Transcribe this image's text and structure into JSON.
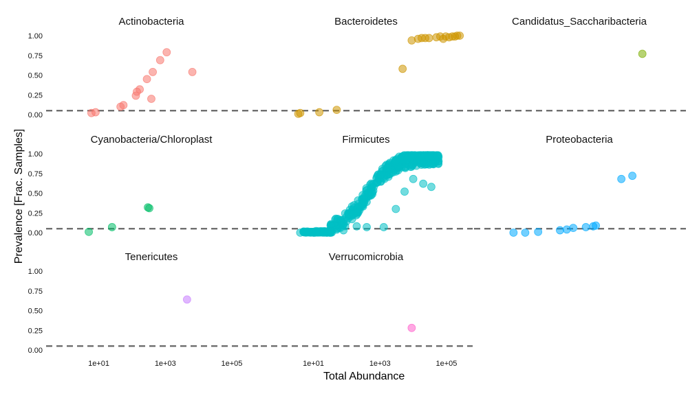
{
  "chart_data": {
    "type": "scatter",
    "layout": "faceted 3x3, log10 x-axis",
    "xlabel": "Total Abundance",
    "ylabel": "Prevalence [Frac. Samples]",
    "x_scale": "log10",
    "xlim": [
      0.3,
      300000
    ],
    "ylim": [
      0,
      1
    ],
    "x_ticks": [
      10,
      1000,
      100000
    ],
    "x_tick_labels": [
      "1e+01",
      "1e+03",
      "1e+05"
    ],
    "y_ticks": [
      0,
      0.25,
      0.5,
      0.75,
      1
    ],
    "y_tick_labels": [
      "0.00",
      "0.25",
      "0.50",
      "0.75",
      "1.00"
    ],
    "reference_line": {
      "y": 0.05,
      "style": "dashed",
      "color": "#666666"
    },
    "grid": false,
    "legend": "none",
    "panels": [
      {
        "name": "Actinobacteria",
        "color": "#F8766D",
        "points": [
          [
            6,
            0.02
          ],
          [
            8,
            0.03
          ],
          [
            45,
            0.1
          ],
          [
            55,
            0.12
          ],
          [
            130,
            0.24
          ],
          [
            140,
            0.29
          ],
          [
            170,
            0.32
          ],
          [
            280,
            0.45
          ],
          [
            380,
            0.2
          ],
          [
            420,
            0.54
          ],
          [
            700,
            0.69
          ],
          [
            1100,
            0.79
          ],
          [
            6500,
            0.54
          ]
        ]
      },
      {
        "name": "Bacteroidetes",
        "color": "#CD9600",
        "points": [
          [
            3.5,
            0.01
          ],
          [
            4,
            0.02
          ],
          [
            15,
            0.03
          ],
          [
            50,
            0.06
          ],
          [
            4800,
            0.58
          ],
          [
            9000,
            0.94
          ],
          [
            14000,
            0.96
          ],
          [
            18000,
            0.97
          ],
          [
            23000,
            0.97
          ],
          [
            30000,
            0.97
          ],
          [
            50000,
            0.98
          ],
          [
            65000,
            0.99
          ],
          [
            80000,
            0.96
          ],
          [
            95000,
            0.99
          ],
          [
            120000,
            0.98
          ],
          [
            150000,
            0.99
          ],
          [
            180000,
            0.99
          ],
          [
            210000,
            1.0
          ],
          [
            250000,
            1.0
          ]
        ]
      },
      {
        "name": "Candidatus_Saccharibacteria",
        "color": "#7CAE00",
        "points": [
          [
            30000,
            0.77
          ]
        ]
      },
      {
        "name": "Cyanobacteria/Chloroplast",
        "color": "#00BE67",
        "points": [
          [
            5,
            0.01
          ],
          [
            25,
            0.07
          ],
          [
            300,
            0.32
          ],
          [
            330,
            0.31
          ]
        ]
      },
      {
        "name": "Firmicutes",
        "color": "#00BFC4",
        "points": "dense"
      },
      {
        "name": "Proteobacteria",
        "color": "#00A9FF",
        "points": [
          [
            4,
            0.0
          ],
          [
            9,
            0.0
          ],
          [
            22,
            0.01
          ],
          [
            100,
            0.03
          ],
          [
            160,
            0.04
          ],
          [
            250,
            0.06
          ],
          [
            600,
            0.07
          ],
          [
            1000,
            0.08
          ],
          [
            1200,
            0.09
          ],
          [
            7000,
            0.68
          ],
          [
            15000,
            0.72
          ]
        ]
      },
      {
        "name": "Tenericutes",
        "color": "#C77CFF",
        "points": [
          [
            4500,
            0.64
          ]
        ]
      },
      {
        "name": "Verrucomicrobia",
        "color": "#FF61CC",
        "points": [
          [
            9000,
            0.28
          ]
        ]
      }
    ]
  }
}
